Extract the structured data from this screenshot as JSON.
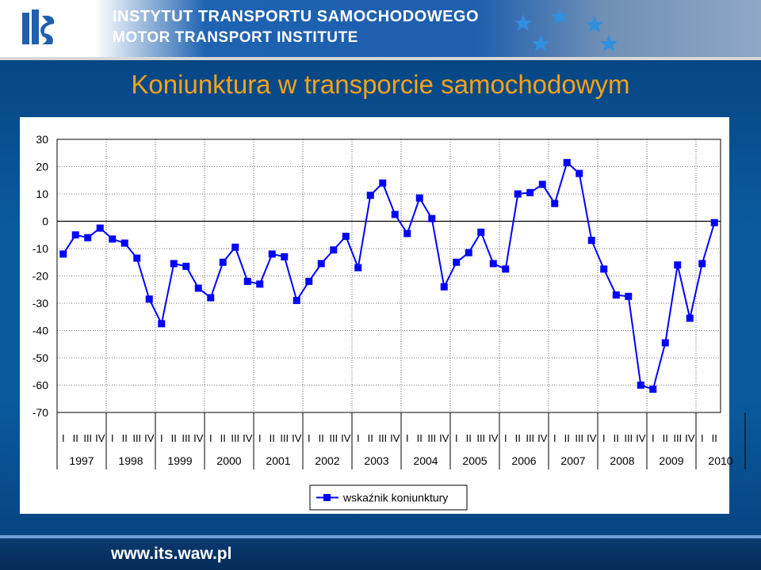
{
  "header": {
    "line1": "INSTYTUT TRANSPORTU SAMOCHODOWEGO",
    "line2": "MOTOR TRANSPORT INSTITUTE",
    "logo_text": "its",
    "brand_color": "#1f5fae"
  },
  "title": "Koniunktura w transporcie samochodowym",
  "footer": {
    "url": "www.its.waw.pl"
  },
  "chart_data": {
    "type": "line",
    "title": "Koniunktura w transporcie samochodowym",
    "xlabel": "",
    "ylabel": "",
    "ylim": [
      -70,
      30
    ],
    "yticks": [
      30,
      20,
      10,
      0,
      -10,
      -20,
      -30,
      -40,
      -50,
      -60,
      -70
    ],
    "quarters": [
      "I",
      "II",
      "III",
      "IV"
    ],
    "years": [
      "1997",
      "1998",
      "1999",
      "2000",
      "2001",
      "2002",
      "2003",
      "2004",
      "2005",
      "2006",
      "2007",
      "2008",
      "2009",
      "2010"
    ],
    "series": [
      {
        "name": "wskaźnik koniunktury",
        "color": "#0000ff",
        "values": [
          -12,
          -5,
          -6,
          -2.5,
          -6.5,
          -8,
          -13.5,
          -28.5,
          -37.5,
          -15.5,
          -16.5,
          -24.5,
          -28,
          -15,
          -9.5,
          -22,
          -23,
          -12,
          -13,
          -29,
          -22,
          -15.5,
          -10.5,
          -5.5,
          -17,
          9.5,
          14,
          2.5,
          -4.5,
          8.5,
          1,
          -24,
          -15,
          -11.5,
          -4,
          -15.5,
          -17.5,
          10,
          10.5,
          13.5,
          6.5,
          21.5,
          17.5,
          -7,
          -17.5,
          -27,
          -27.5,
          -60,
          -61.5,
          -44.5,
          -16,
          -35.5,
          -15.5,
          -0.5
        ]
      }
    ],
    "legend": {
      "position": "bottom-center",
      "label": "wskaźnik koniunktury"
    }
  }
}
